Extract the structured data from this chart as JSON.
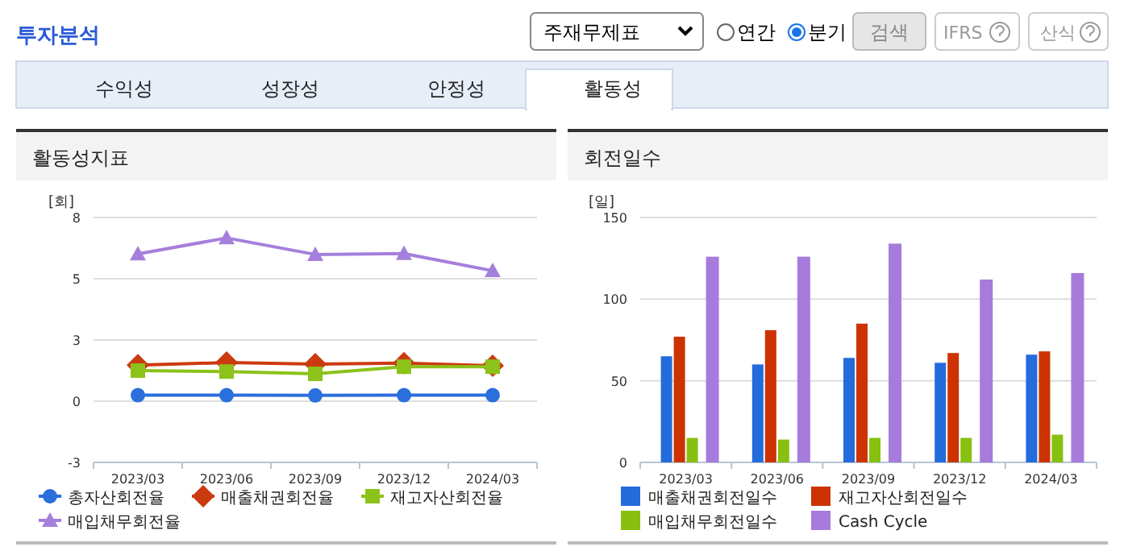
{
  "chart_data": [
    {
      "type": "line",
      "title": "활동성지표",
      "ylabel": "[회]",
      "categories": [
        "2023/03",
        "2023/06",
        "2023/09",
        "2023/12",
        "2024/03"
      ],
      "ylim": [
        -2.667,
        8
      ],
      "yticks": [
        {
          "value": -2.667,
          "label": "-3"
        },
        0,
        {
          "value": 2.667,
          "label": "3"
        },
        {
          "value": 5.333,
          "label": "5"
        },
        8
      ],
      "grid": "y",
      "legend": "bottom",
      "annotations": [
        "투자분석",
        "주재무제표",
        "연간",
        "분기",
        "검색",
        "IFRS",
        "산식",
        "수익성",
        "성장성",
        "안정성",
        "활동성"
      ],
      "series": [
        {
          "name": "총자산회전율",
          "color": "#2a6fdb",
          "marker": "circle",
          "values": [
            0.26,
            0.26,
            0.25,
            0.26,
            0.26
          ]
        },
        {
          "name": "매출채권회전율",
          "color": "#cc3a10",
          "marker": "diamond",
          "values": [
            1.57,
            1.68,
            1.61,
            1.66,
            1.54
          ]
        },
        {
          "name": "재고자산회전율",
          "color": "#8cc21a",
          "marker": "square",
          "values": [
            1.33,
            1.29,
            1.19,
            1.5,
            1.5
          ]
        },
        {
          "name": "매입채무회전율",
          "color": "#a57fdc",
          "marker": "triangle",
          "values": [
            6.41,
            7.11,
            6.39,
            6.43,
            5.68
          ]
        }
      ]
    },
    {
      "type": "bar",
      "title": "회전일수",
      "ylabel": "[일]",
      "categories": [
        "2023/03",
        "2023/06",
        "2023/09",
        "2023/12",
        "2024/03"
      ],
      "ylim": [
        0,
        150
      ],
      "yticks": [
        0,
        50,
        100,
        150
      ],
      "grid": "y",
      "legend": "bottom",
      "series": [
        {
          "name": "매출채권회전일수",
          "color": "#246bdc",
          "values": [
            65,
            60,
            64,
            61,
            66
          ]
        },
        {
          "name": "재고자산회전일수",
          "color": "#cc3300",
          "values": [
            77,
            81,
            85,
            67,
            68
          ]
        },
        {
          "name": "매입채무회전일수",
          "color": "#88c010",
          "values": [
            15,
            14,
            15,
            15,
            17
          ]
        },
        {
          "name": "Cash Cycle",
          "color": "#a67bdb",
          "values": [
            126,
            126,
            134,
            112,
            116
          ]
        }
      ]
    }
  ]
}
